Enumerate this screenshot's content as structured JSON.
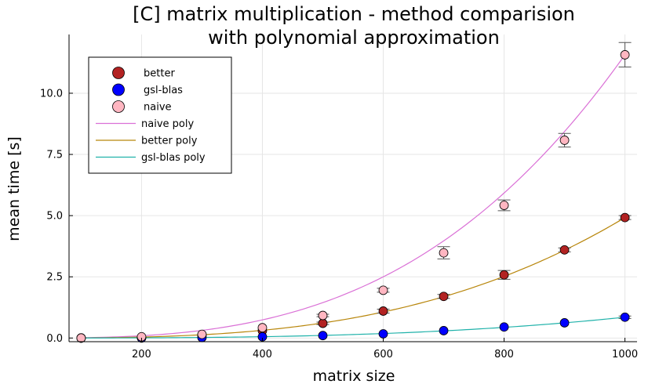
{
  "chart_data": {
    "type": "scatter",
    "title_lines": [
      "[C] matrix multiplication - method comparision",
      "with polynomial approximation"
    ],
    "xlabel": "matrix size",
    "ylabel": "mean time [s]",
    "xlim": [
      80,
      1020
    ],
    "ylim": [
      -0.15,
      12.4
    ],
    "x_ticks": [
      200,
      400,
      600,
      800,
      1000
    ],
    "x_tick_labels": [
      "200",
      "400",
      "600",
      "800",
      "1000"
    ],
    "y_ticks": [
      0,
      2.5,
      5,
      7.5,
      10
    ],
    "y_tick_labels": [
      "0.0",
      "2.5",
      "5.0",
      "7.5",
      "10.0"
    ],
    "grid": true,
    "legend_position": "top-left",
    "x": [
      100,
      200,
      300,
      400,
      500,
      600,
      700,
      800,
      900,
      1000
    ],
    "series": [
      {
        "name": "better",
        "kind": "scatter",
        "color": "#b22222",
        "values": [
          0.0,
          0.02,
          0.12,
          0.3,
          0.6,
          1.1,
          1.7,
          2.58,
          3.6,
          4.92
        ],
        "err": [
          0.01,
          0.01,
          0.02,
          0.03,
          0.05,
          0.08,
          0.08,
          0.18,
          0.08,
          0.08
        ]
      },
      {
        "name": "gsl-blas",
        "kind": "scatter",
        "color": "#0000ff",
        "values": [
          0.0,
          0.0,
          0.02,
          0.05,
          0.1,
          0.17,
          0.3,
          0.45,
          0.62,
          0.85
        ],
        "err": [
          0.0,
          0.0,
          0.01,
          0.01,
          0.02,
          0.02,
          0.03,
          0.03,
          0.04,
          0.05
        ]
      },
      {
        "name": "naive",
        "kind": "scatter",
        "color": "#ffb6c1",
        "values": [
          0.0,
          0.05,
          0.15,
          0.42,
          0.92,
          1.95,
          3.48,
          5.42,
          8.08,
          11.57
        ],
        "err": [
          0.01,
          0.01,
          0.02,
          0.03,
          0.05,
          0.08,
          0.25,
          0.22,
          0.28,
          0.5
        ]
      },
      {
        "name": "naive poly",
        "kind": "line",
        "color": "#da70d6",
        "cubic": [
          0.0,
          0.0,
          0.0,
          1.157e-08
        ]
      },
      {
        "name": "better poly",
        "kind": "line",
        "color": "#b8860b",
        "cubic": [
          0.0,
          0.0,
          0.0,
          4.92e-09
        ]
      },
      {
        "name": "gsl-blas poly",
        "kind": "line",
        "color": "#20b2aa",
        "cubic": [
          0.0,
          0.0,
          0.0,
          8.5e-10
        ]
      }
    ]
  }
}
